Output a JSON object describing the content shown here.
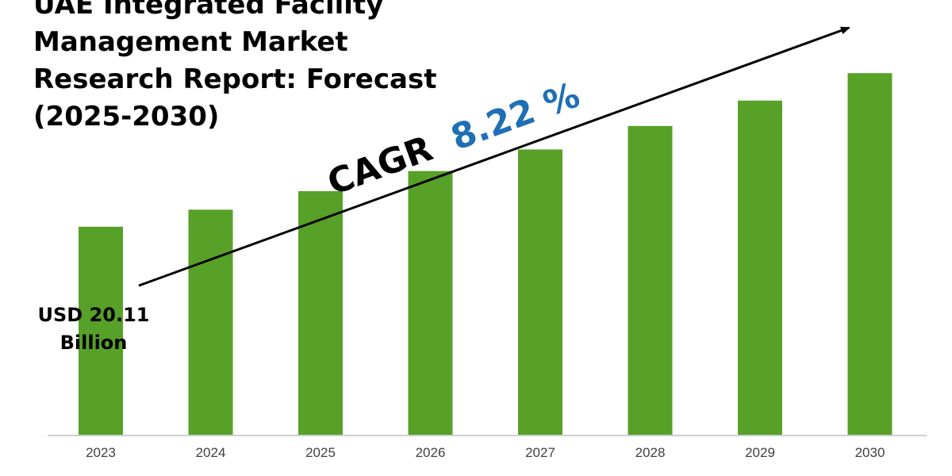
{
  "title_lines": [
    "UAE Integrated Facility",
    "Management Market",
    "Research Report: Forecast",
    "(2025-2030)"
  ],
  "cagr": {
    "label": "CAGR",
    "value": "8.22 %"
  },
  "start_value_label": [
    "USD 20.11",
    "Billion"
  ],
  "colors": {
    "bar": "#57a128",
    "cagr_value": "#1f6fb5",
    "text": "#000000",
    "axis": "#bfbfbf"
  },
  "chart_data": {
    "type": "bar",
    "categories": [
      "2023",
      "2024",
      "2025",
      "2026",
      "2027",
      "2028",
      "2029",
      "2030"
    ],
    "values": [
      20.11,
      21.76,
      23.55,
      25.49,
      27.58,
      29.85,
      32.3,
      34.96
    ],
    "ylim": [
      0,
      38.5
    ],
    "grid": false,
    "legend": "none",
    "annotations": [
      "CAGR 8.22 %",
      "USD 20.11 Billion"
    ]
  }
}
